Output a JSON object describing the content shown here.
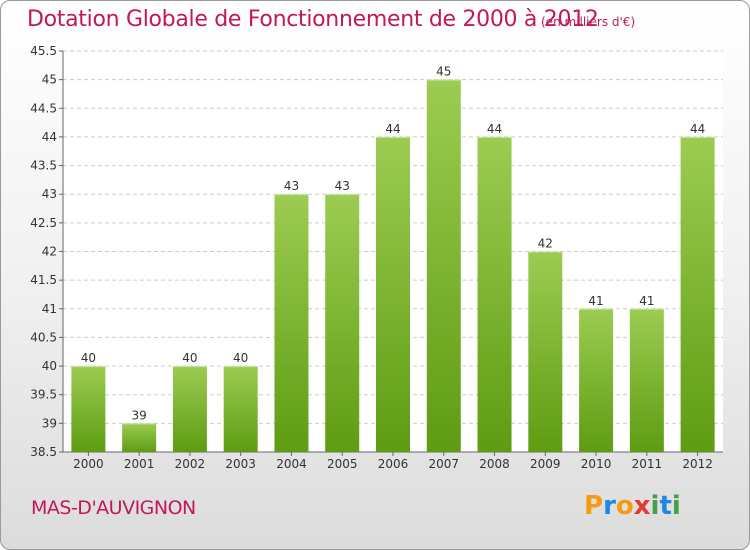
{
  "chart_data": {
    "type": "bar",
    "title": "Dotation Globale de Fonctionnement de 2000 à 2012",
    "unit": "(en milliers d'€)",
    "categories": [
      "2000",
      "2001",
      "2002",
      "2003",
      "2004",
      "2005",
      "2006",
      "2007",
      "2008",
      "2009",
      "2010",
      "2011",
      "2012"
    ],
    "values": [
      40,
      39,
      40,
      40,
      43,
      43,
      44,
      45,
      44,
      42,
      41,
      41,
      44
    ],
    "ylim": [
      38.5,
      45.5
    ],
    "yticks": [
      "38.5",
      "39",
      "39.5",
      "40",
      "40.5",
      "41",
      "41.5",
      "42",
      "42.5",
      "43",
      "43.5",
      "44",
      "44.5",
      "45",
      "45.5"
    ],
    "grid": true,
    "bar_color_top": "#9ccc52",
    "bar_color_bottom": "#5e9c12"
  },
  "commune": "MAS-D'AUVIGNON",
  "logo": {
    "letters": [
      "P",
      "r",
      "o",
      "x",
      "i",
      "t",
      "i"
    ],
    "colors": [
      "#f39c12",
      "#1e88e5",
      "#f39c12",
      "#e53935",
      "#43a047",
      "#1e88e5",
      "#43a047"
    ]
  },
  "colors": {
    "accent": "#c2185b",
    "grid": "#cccccc",
    "axis": "#666666"
  }
}
